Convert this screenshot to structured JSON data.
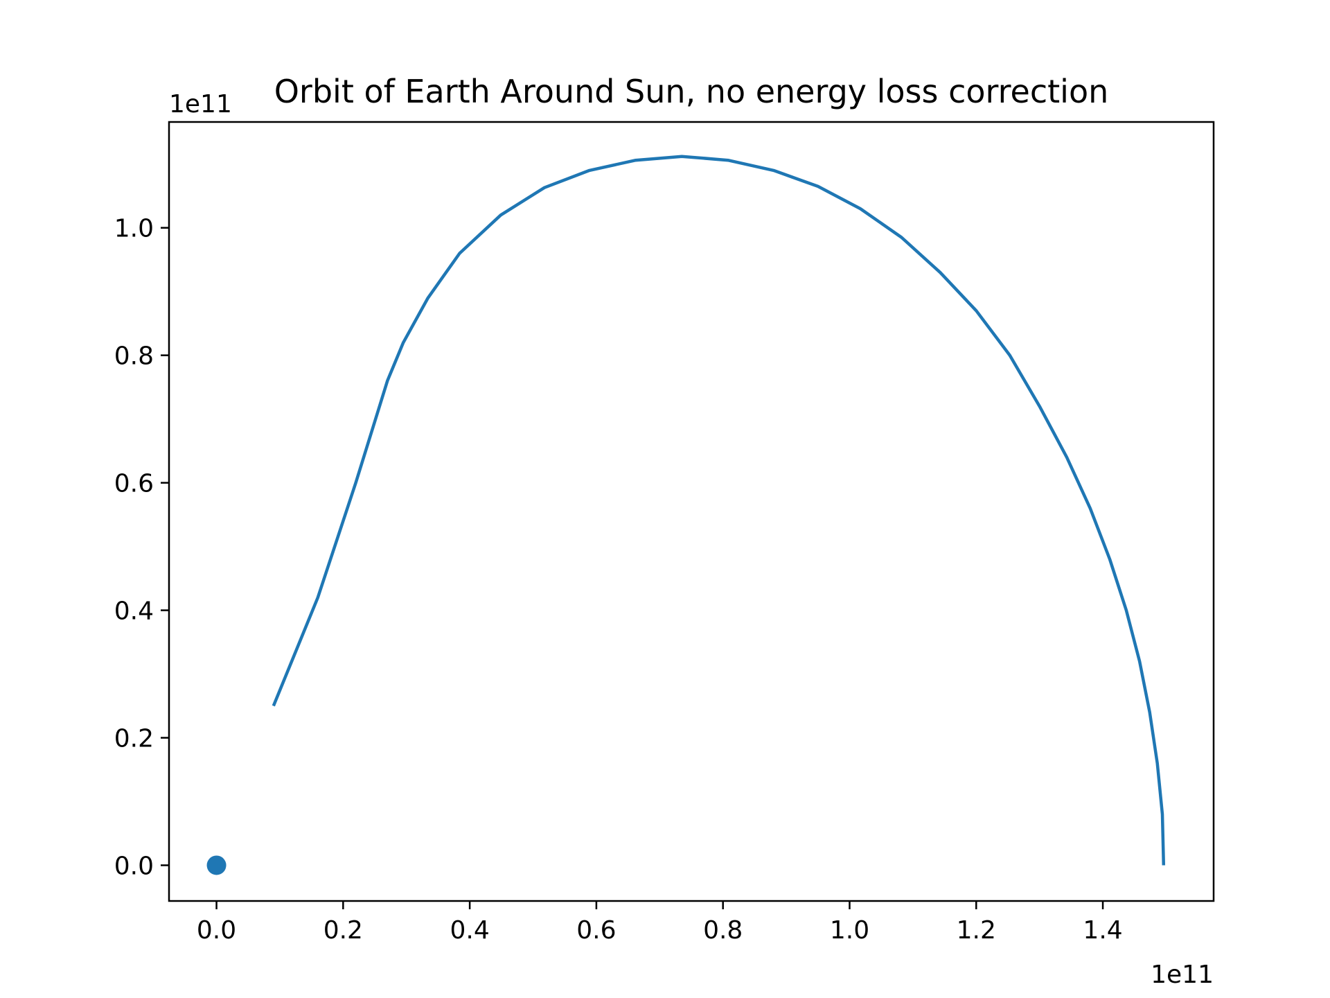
{
  "chart_data": {
    "type": "line",
    "title": "Orbit of Earth Around Sun, no energy loss correction",
    "xlabel": "",
    "ylabel": "",
    "x_offset_label": "1e11",
    "y_offset_label": "1e11",
    "xlim": [
      -0.075,
      1.575
    ],
    "ylim": [
      -0.056,
      1.166
    ],
    "x_ticks": [
      "0.0",
      "0.2",
      "0.4",
      "0.6",
      "0.8",
      "1.0",
      "1.2",
      "1.4"
    ],
    "y_ticks": [
      "0.0",
      "0.2",
      "0.4",
      "0.6",
      "0.8",
      "1.0"
    ],
    "grid": false,
    "line_color": "#1f77b4",
    "series": [
      {
        "type": "line",
        "x": [
          1.496,
          1.494,
          1.486,
          1.474,
          1.458,
          1.437,
          1.411,
          1.38,
          1.343,
          1.3,
          1.253,
          1.2,
          1.143,
          1.082,
          1.017,
          0.95,
          0.88,
          0.808,
          0.735,
          0.662,
          0.589,
          0.518,
          0.449,
          0.384,
          0.334,
          0.295,
          0.27,
          0.22,
          0.16,
          0.09
        ],
        "y": [
          0.0,
          0.08,
          0.16,
          0.24,
          0.32,
          0.4,
          0.48,
          0.56,
          0.64,
          0.72,
          0.8,
          0.87,
          0.93,
          0.985,
          1.03,
          1.065,
          1.09,
          1.106,
          1.112,
          1.106,
          1.09,
          1.063,
          1.02,
          0.96,
          0.89,
          0.82,
          0.76,
          0.6,
          0.42,
          0.25
        ]
      },
      {
        "type": "scatter",
        "x": [
          0.0
        ],
        "y": [
          0.0
        ]
      }
    ]
  }
}
